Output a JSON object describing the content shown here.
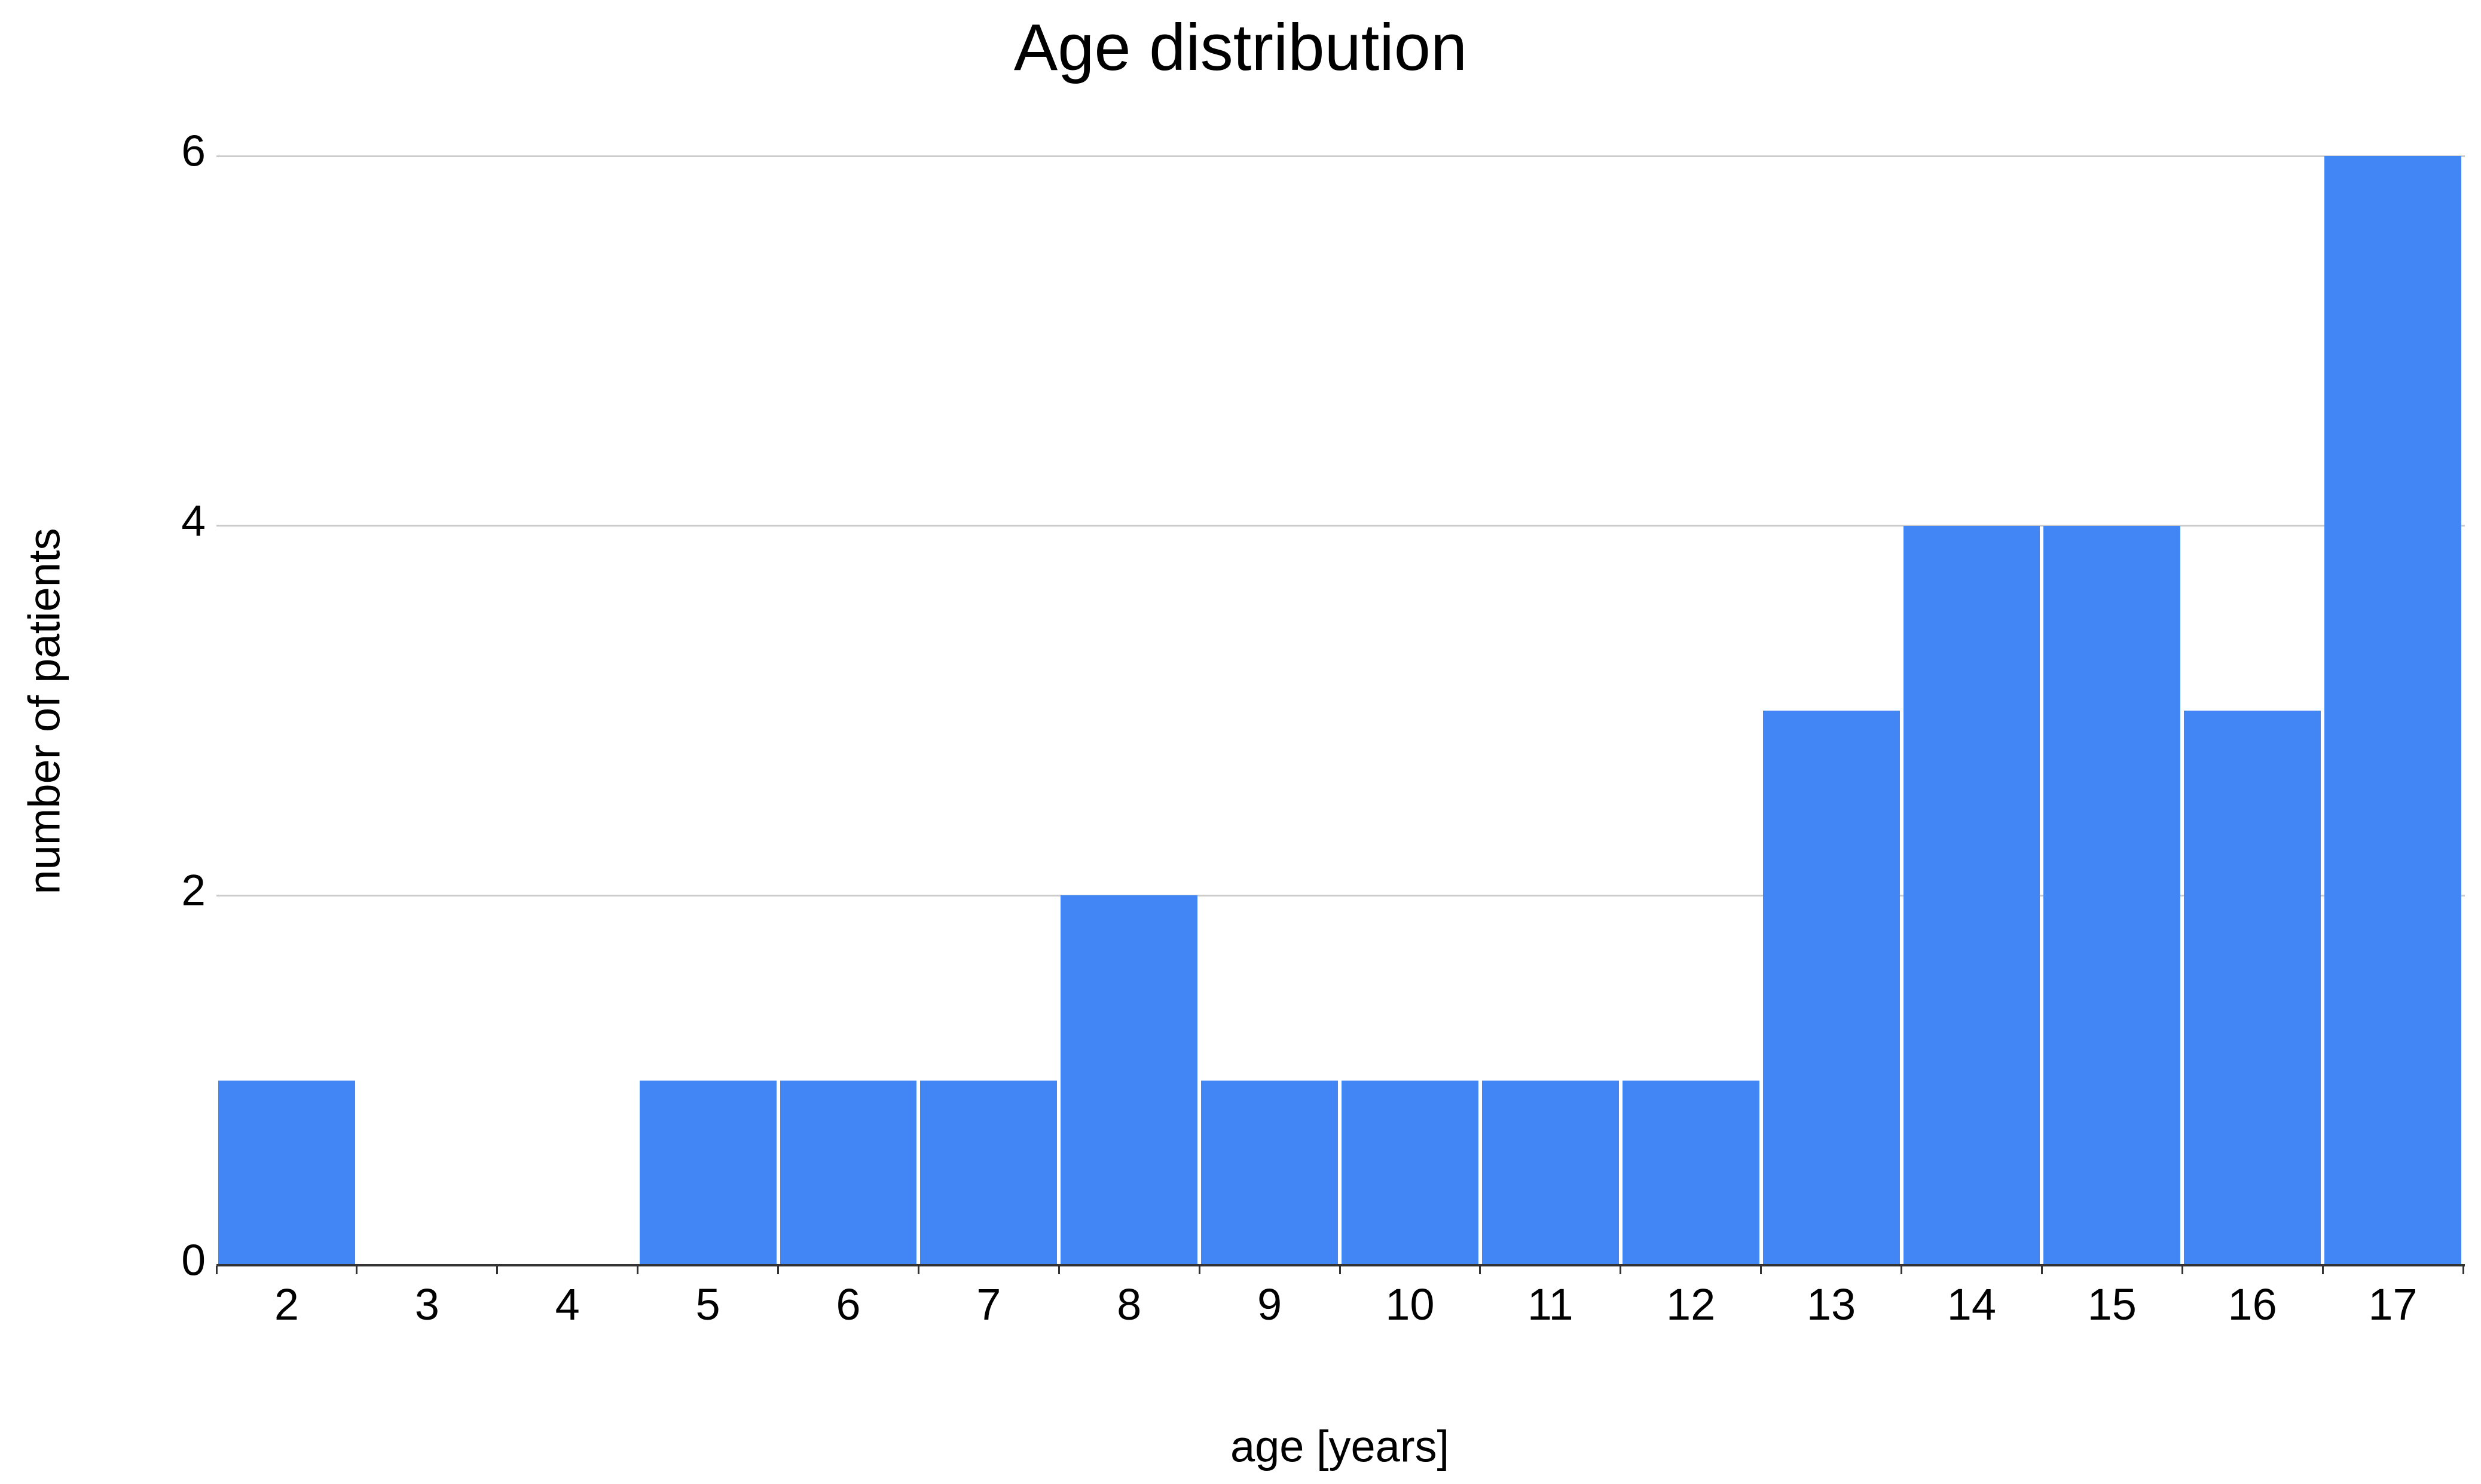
{
  "chart_data": {
    "type": "bar",
    "title": "Age distribution",
    "xlabel": "age [years]",
    "ylabel": "number of patients",
    "categories": [
      2,
      3,
      4,
      5,
      6,
      7,
      8,
      9,
      10,
      11,
      12,
      13,
      14,
      15,
      16,
      17
    ],
    "values": [
      1,
      0,
      0,
      1,
      1,
      1,
      2,
      1,
      1,
      1,
      1,
      3,
      4,
      4,
      3,
      6
    ],
    "yticks": [
      0,
      2,
      4,
      6
    ],
    "ylim": [
      0,
      6
    ],
    "grid": "horizontal",
    "legend_position": "none",
    "colors": {
      "bar": "#4285f4",
      "gridline": "#cccccc",
      "axis": "#333333",
      "text": "#000000",
      "background": "#ffffff"
    }
  }
}
